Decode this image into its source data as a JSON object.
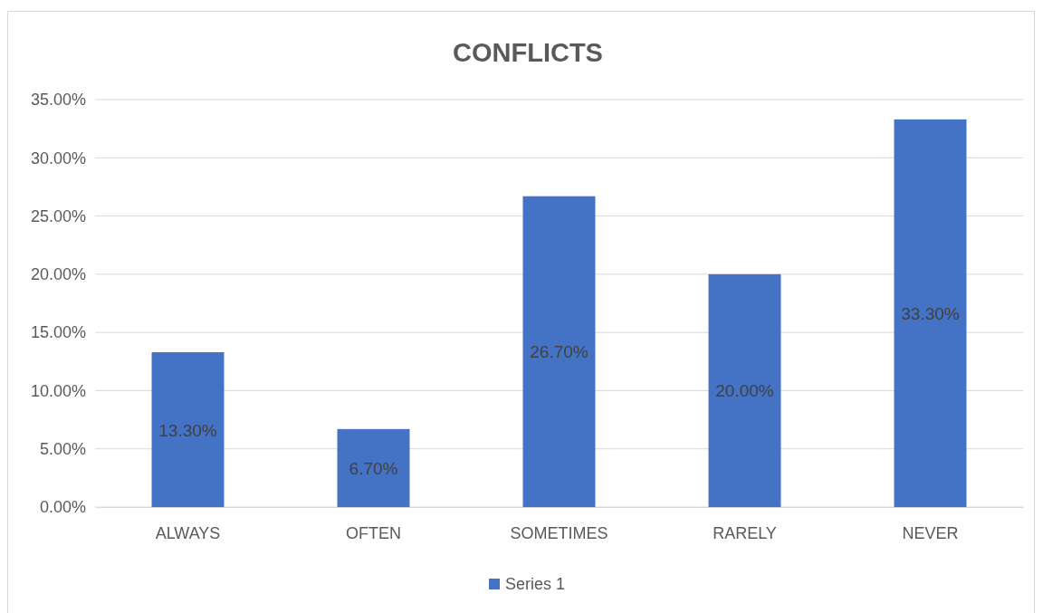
{
  "chart_data": {
    "type": "bar",
    "title": "CONFLICTS",
    "categories": [
      "ALWAYS",
      "OFTEN",
      "SOMETIMES",
      "RARELY",
      "NEVER"
    ],
    "series": [
      {
        "name": "Series 1",
        "color": "#4472c4",
        "values": [
          13.3,
          6.7,
          26.7,
          20,
          33.3
        ],
        "value_labels": [
          "13.30%",
          "6.70%",
          "26.70%",
          "20.00%",
          "33.30%"
        ]
      }
    ],
    "ylim": [
      0,
      35
    ],
    "yticks": [
      {
        "value": 0,
        "label": "0.00%"
      },
      {
        "value": 5,
        "label": "5.00%"
      },
      {
        "value": 10,
        "label": "10.00%"
      },
      {
        "value": 15,
        "label": "15.00%"
      },
      {
        "value": 20,
        "label": "20.00%"
      },
      {
        "value": 25,
        "label": "25.00%"
      },
      {
        "value": 30,
        "label": "30.00%"
      },
      {
        "value": 35,
        "label": "35.00%"
      }
    ],
    "grid": "y",
    "legend": "bottom"
  }
}
